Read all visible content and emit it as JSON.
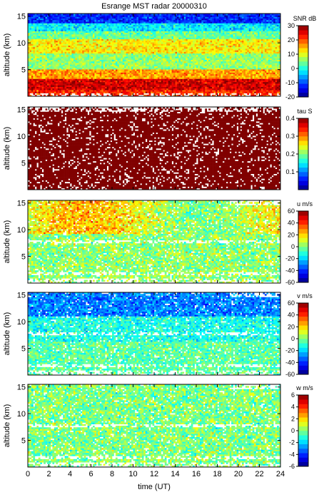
{
  "chart_data": {
    "title": "Esrange MST radar 20000310",
    "xlabel": "time (UT)",
    "xlim": [
      0,
      24
    ],
    "xticks": [
      0,
      2,
      4,
      6,
      8,
      10,
      12,
      14,
      16,
      18,
      20,
      22,
      24
    ],
    "panels": [
      {
        "type": "heatmap",
        "ylabel": "altitude (km)",
        "ylim": [
          0,
          15.5
        ],
        "yticks": [
          5,
          10,
          15
        ],
        "colorbar_label": "SNR dB",
        "clim": [
          -20,
          30
        ],
        "cticks": [
          -20,
          -10,
          0,
          10,
          20,
          30
        ],
        "field": "snr"
      },
      {
        "type": "heatmap",
        "ylabel": "altitude (km)",
        "ylim": [
          0,
          15.5
        ],
        "yticks": [
          5,
          10,
          15
        ],
        "colorbar_label": "tau S",
        "clim": [
          0,
          0.4
        ],
        "cticks": [
          0.1,
          0.2,
          0.3,
          0.4
        ],
        "field": "tau"
      },
      {
        "type": "heatmap",
        "ylabel": "altitude (km)",
        "ylim": [
          0,
          15.5
        ],
        "yticks": [
          5,
          10,
          15
        ],
        "colorbar_label": "u m/s",
        "clim": [
          -60,
          60
        ],
        "cticks": [
          -60,
          -40,
          -20,
          0,
          20,
          40,
          60
        ],
        "field": "u"
      },
      {
        "type": "heatmap",
        "ylabel": "altitude (km)",
        "ylim": [
          0,
          15.5
        ],
        "yticks": [
          5,
          10,
          15
        ],
        "colorbar_label": "v m/s",
        "clim": [
          -60,
          60
        ],
        "cticks": [
          -60,
          -40,
          -20,
          0,
          20,
          40,
          60
        ],
        "field": "v"
      },
      {
        "type": "heatmap",
        "ylabel": "altitude (km)",
        "ylim": [
          0,
          15.5
        ],
        "yticks": [
          5,
          10,
          15
        ],
        "colorbar_label": "w m/s",
        "clim": [
          -6,
          6
        ],
        "cticks": [
          -6,
          -4,
          -2,
          0,
          2,
          4,
          6
        ],
        "field": "w"
      }
    ]
  }
}
